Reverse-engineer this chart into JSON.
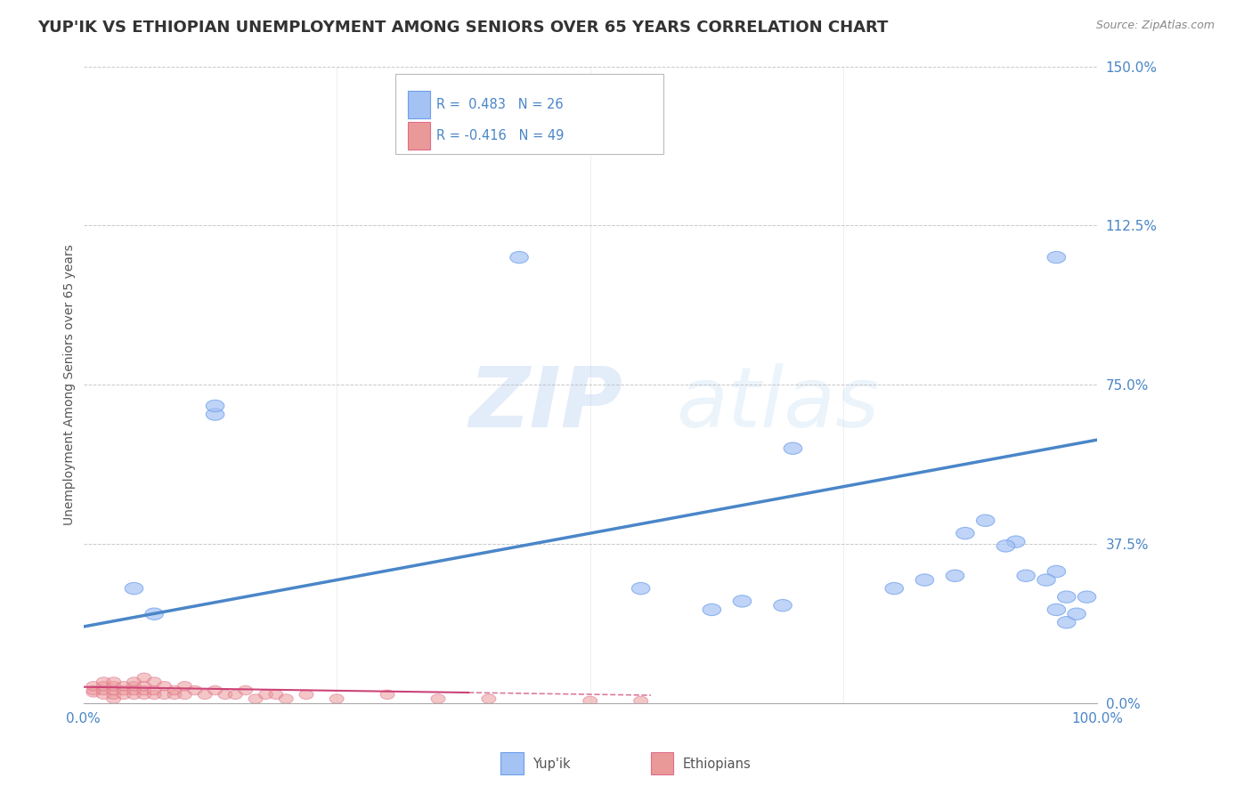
{
  "title": "YUP'IK VS ETHIOPIAN UNEMPLOYMENT AMONG SENIORS OVER 65 YEARS CORRELATION CHART",
  "source": "Source: ZipAtlas.com",
  "ylabel": "Unemployment Among Seniors over 65 years",
  "xlim": [
    0,
    1.0
  ],
  "ylim": [
    0,
    1.5
  ],
  "yticks_right": [
    0.0,
    0.375,
    0.75,
    1.125,
    1.5
  ],
  "yticklabels_right": [
    "0.0%",
    "37.5%",
    "75.0%",
    "112.5%",
    "150.0%"
  ],
  "yupik_color": "#a4c2f4",
  "yupik_edge_color": "#6d9eeb",
  "ethiopian_color": "#ea9999",
  "ethiopian_edge_color": "#e06c8a",
  "yupik_line_color": "#4a86c8",
  "ethiopian_line_color": "#cc4477",
  "watermark_zip": "ZIP",
  "watermark_atlas": "atlas",
  "background_color": "#ffffff",
  "grid_color": "#bbbbbb",
  "tick_color": "#4a86c8",
  "tick_fontsize": 11,
  "axis_label_fontsize": 10,
  "title_fontsize": 13,
  "yupik_x": [
    0.05,
    0.07,
    0.13,
    0.13,
    0.43,
    0.96,
    0.7,
    0.87,
    0.86,
    0.92,
    0.96,
    0.55,
    0.62,
    0.65,
    0.69,
    0.83,
    0.89,
    0.93,
    0.97,
    0.97,
    0.8,
    0.91,
    0.95,
    0.98,
    0.99,
    0.96
  ],
  "yupik_y": [
    0.27,
    0.21,
    0.68,
    0.7,
    1.05,
    1.05,
    0.6,
    0.4,
    0.3,
    0.38,
    0.31,
    0.27,
    0.22,
    0.24,
    0.23,
    0.29,
    0.43,
    0.3,
    0.25,
    0.19,
    0.27,
    0.37,
    0.29,
    0.21,
    0.25,
    0.22
  ],
  "ethiopian_x": [
    0.01,
    0.01,
    0.01,
    0.02,
    0.02,
    0.02,
    0.02,
    0.03,
    0.03,
    0.03,
    0.03,
    0.03,
    0.04,
    0.04,
    0.04,
    0.05,
    0.05,
    0.05,
    0.05,
    0.06,
    0.06,
    0.06,
    0.06,
    0.07,
    0.07,
    0.07,
    0.08,
    0.08,
    0.09,
    0.09,
    0.1,
    0.1,
    0.11,
    0.12,
    0.13,
    0.14,
    0.15,
    0.16,
    0.17,
    0.18,
    0.19,
    0.2,
    0.22,
    0.25,
    0.3,
    0.35,
    0.4,
    0.5,
    0.55
  ],
  "ethiopian_y": [
    0.025,
    0.03,
    0.04,
    0.02,
    0.03,
    0.04,
    0.05,
    0.01,
    0.02,
    0.03,
    0.04,
    0.05,
    0.02,
    0.03,
    0.04,
    0.02,
    0.03,
    0.04,
    0.05,
    0.02,
    0.03,
    0.04,
    0.06,
    0.02,
    0.03,
    0.05,
    0.02,
    0.04,
    0.02,
    0.03,
    0.02,
    0.04,
    0.03,
    0.02,
    0.03,
    0.02,
    0.02,
    0.03,
    0.01,
    0.02,
    0.02,
    0.01,
    0.02,
    0.01,
    0.02,
    0.01,
    0.01,
    0.005,
    0.005
  ]
}
